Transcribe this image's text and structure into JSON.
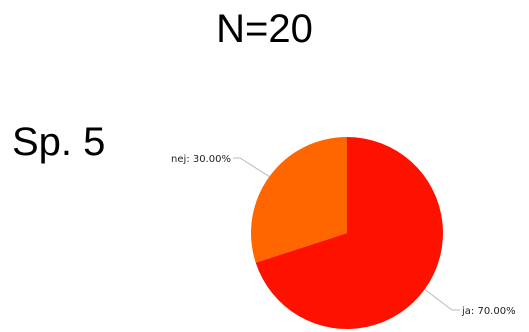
{
  "header": {
    "title": "N=20"
  },
  "question": {
    "label": "Sp. 5"
  },
  "chart_data": {
    "type": "pie",
    "title": "",
    "slices": [
      {
        "label": "ja",
        "value": 70.0,
        "display": "ja: 70.00%",
        "color": "#ff1100"
      },
      {
        "label": "nej",
        "value": 30.0,
        "display": "nej: 30.00%",
        "color": "#ff6600"
      }
    ]
  }
}
